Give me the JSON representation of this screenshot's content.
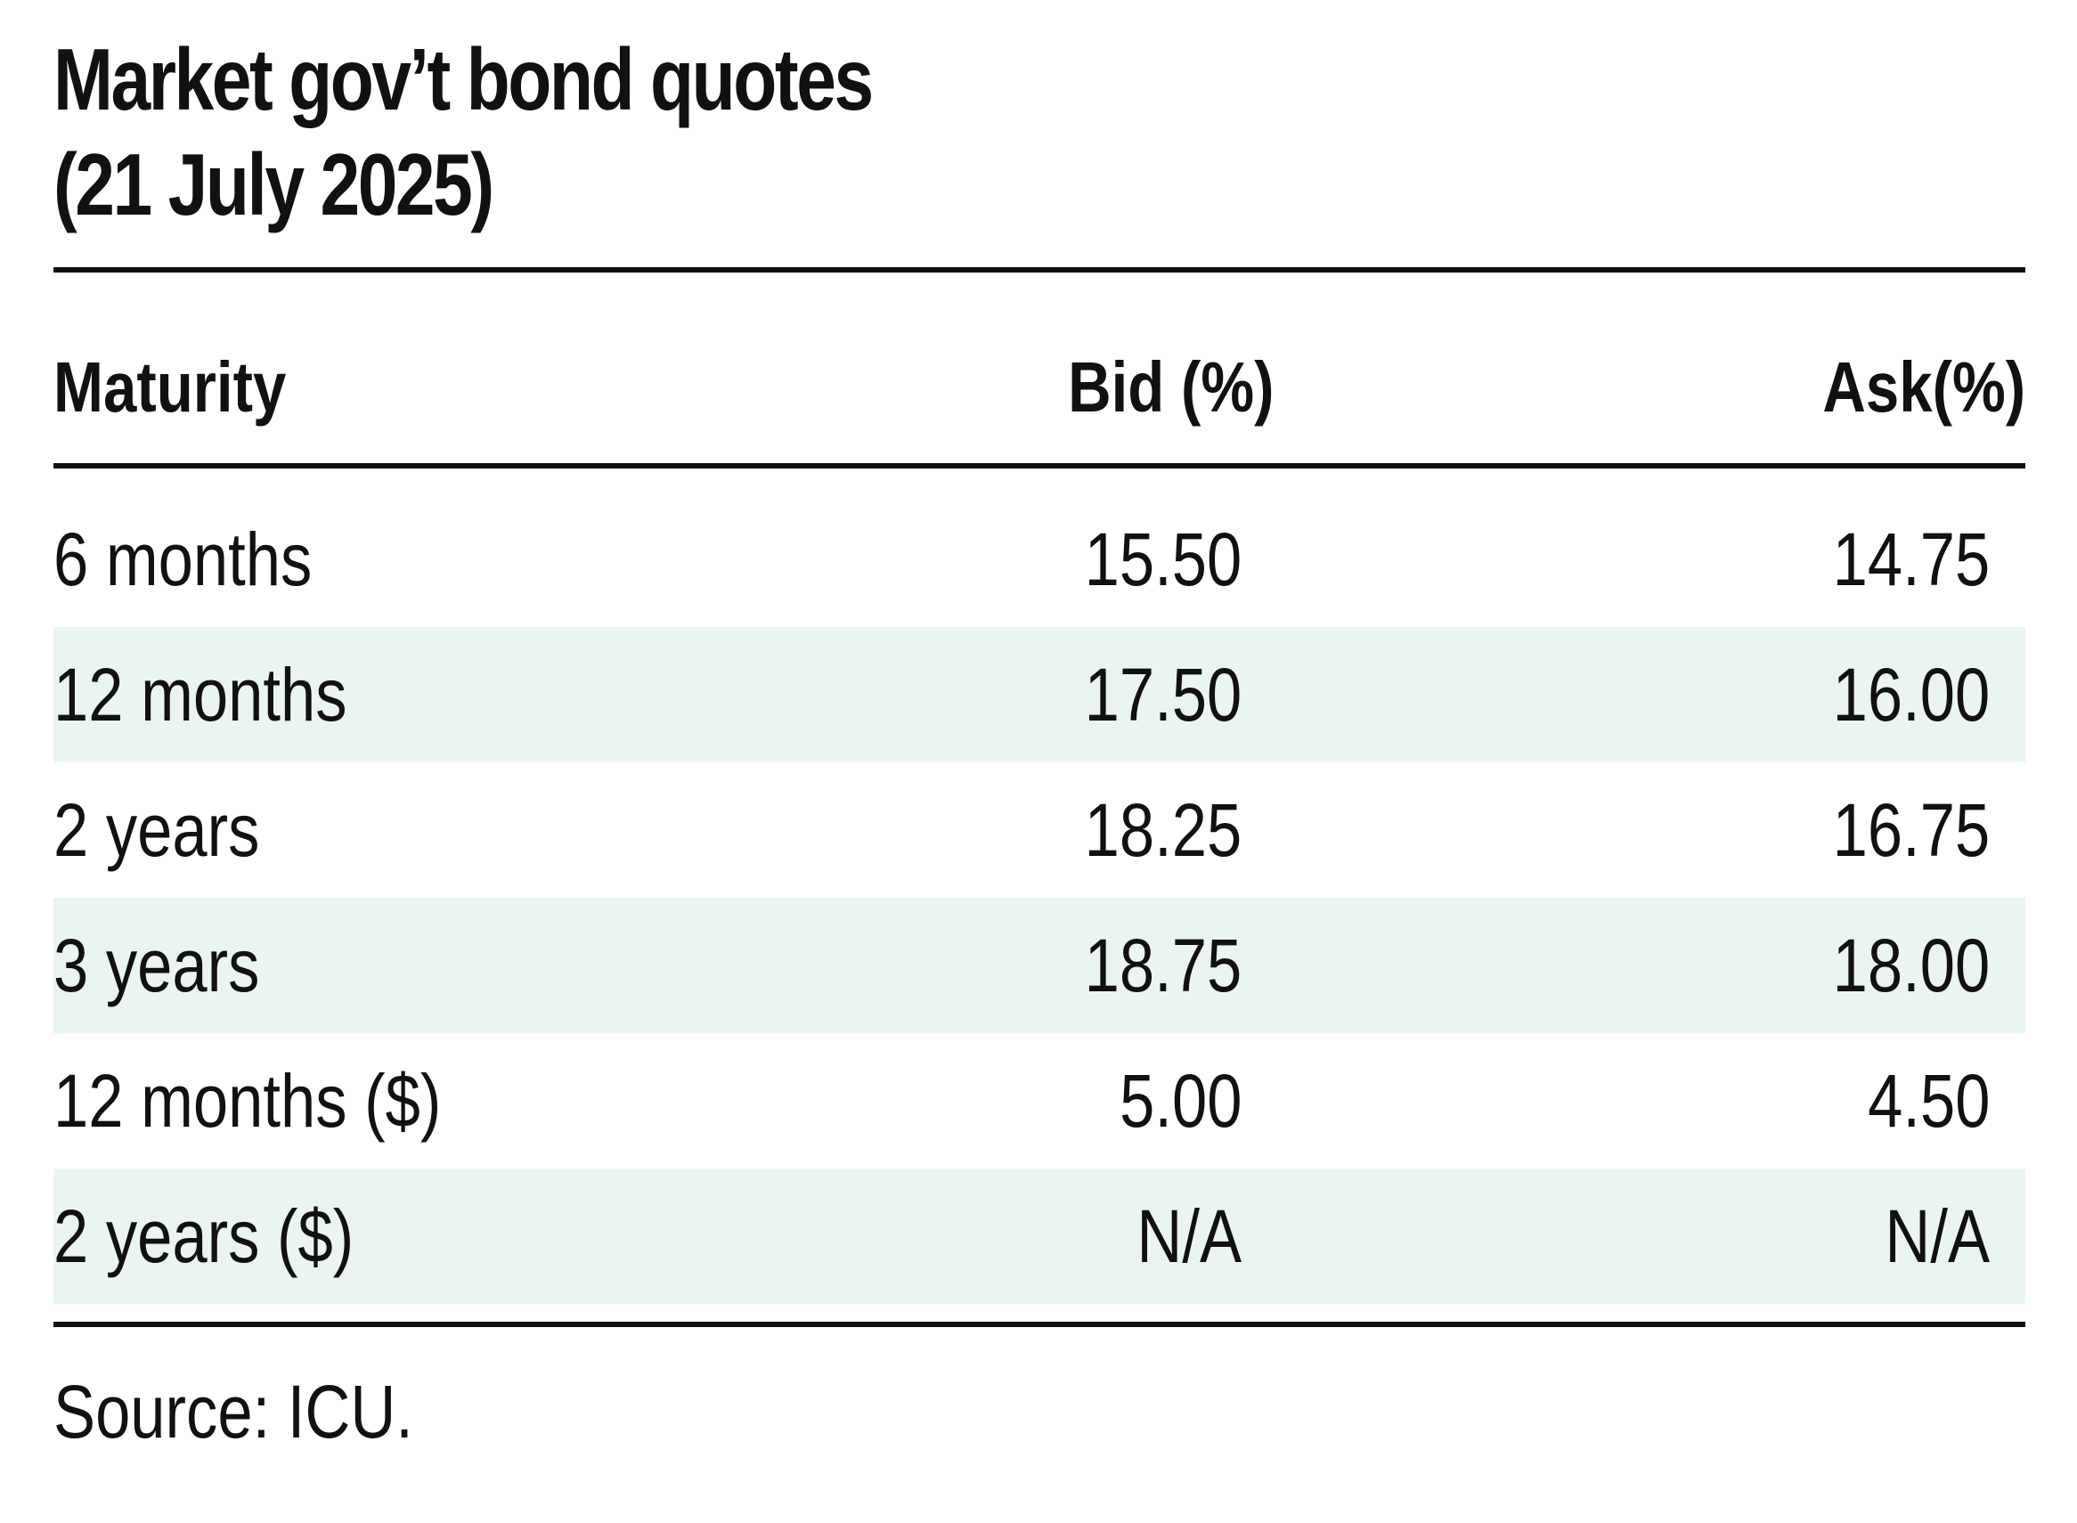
{
  "chart_data": {
    "type": "table",
    "title": "Market gov’t bond quotes",
    "subtitle": "(21 July 2025)",
    "columns": [
      "Maturity",
      "Bid (%)",
      "Ask(%)"
    ],
    "rows": [
      {
        "maturity": "6 months",
        "bid": "15.50",
        "ask": "14.75",
        "shaded": false
      },
      {
        "maturity": "12 months",
        "bid": "17.50",
        "ask": "16.00",
        "shaded": true
      },
      {
        "maturity": "2 years",
        "bid": "18.25",
        "ask": "16.75",
        "shaded": false
      },
      {
        "maturity": "3 years",
        "bid": "18.75",
        "ask": "18.00",
        "shaded": true
      },
      {
        "maturity": "12 months ($)",
        "bid": "5.00",
        "ask": "4.50",
        "shaded": false
      },
      {
        "maturity": "2 years ($)",
        "bid": "N/A",
        "ask": "N/A",
        "shaded": true
      }
    ],
    "source": "Source: ICU.",
    "colors": {
      "text": "#111111",
      "row_shade": "#eaf4f3",
      "rule": "#111111"
    }
  }
}
